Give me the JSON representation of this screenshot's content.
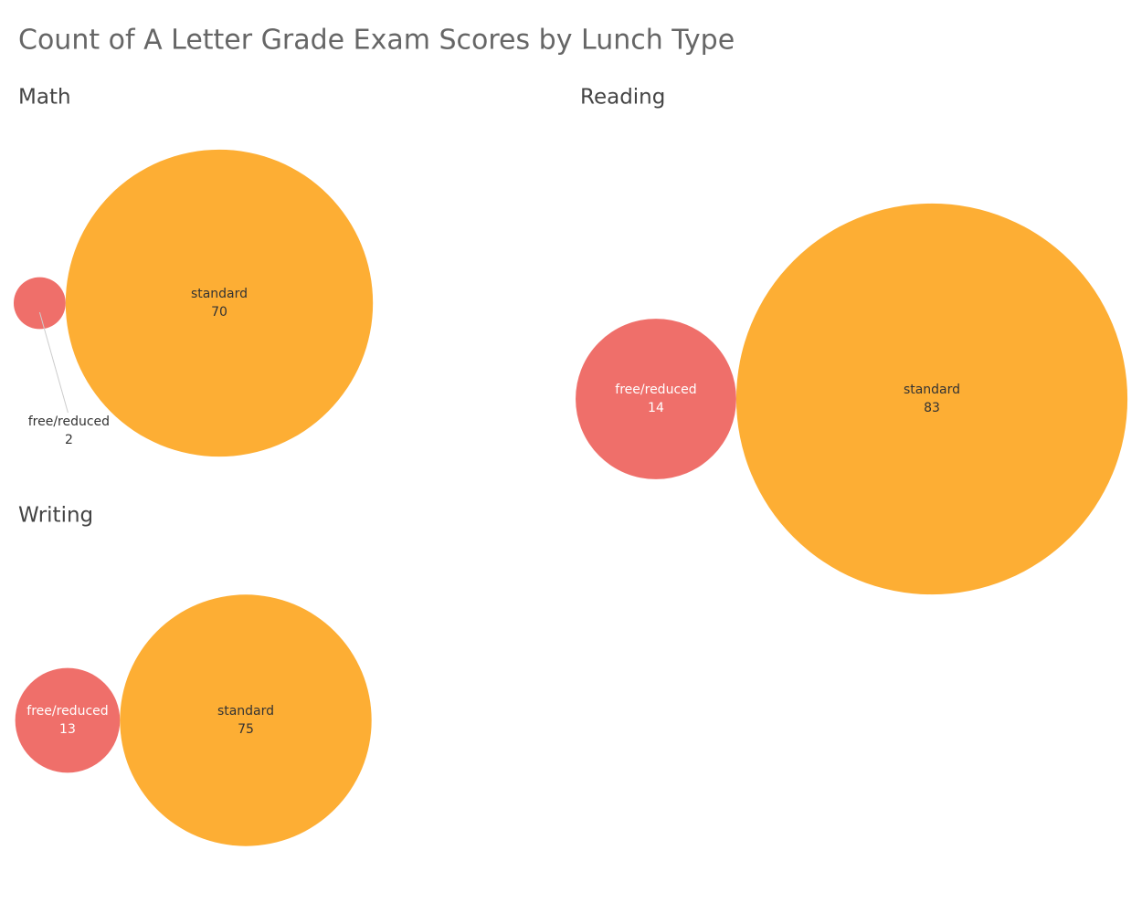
{
  "title": "Count of A Letter Grade Exam Scores by Lunch Type",
  "chart_data": [
    {
      "type": "bubble",
      "title": "Math",
      "categories": [
        "free/reduced",
        "standard"
      ],
      "values": [
        2,
        70
      ],
      "colors": [
        "#ef6f6a",
        "#fdae34"
      ]
    },
    {
      "type": "bubble",
      "title": "Reading",
      "categories": [
        "free/reduced",
        "standard"
      ],
      "values": [
        14,
        83
      ],
      "colors": [
        "#ef6f6a",
        "#fdae34"
      ]
    },
    {
      "type": "bubble",
      "title": "Writing",
      "categories": [
        "free/reduced",
        "standard"
      ],
      "values": [
        13,
        75
      ],
      "colors": [
        "#ef6f6a",
        "#fdae34"
      ]
    }
  ]
}
